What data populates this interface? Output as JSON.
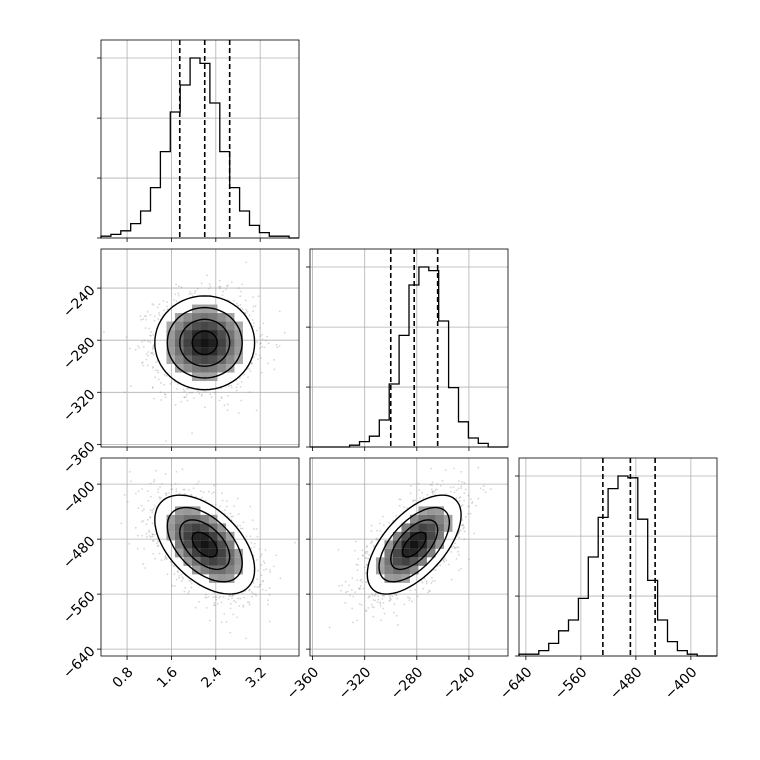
{
  "chart_data": {
    "type": "corner",
    "title": "",
    "grid": true,
    "parameters": [
      {
        "ticks": [
          0.8,
          1.6,
          2.4,
          3.2
        ],
        "tick_labels": [
          "0.8",
          "1.6",
          "2.4",
          "3.2"
        ],
        "range": [
          0.33,
          3.9
        ],
        "quantiles": [
          1.75,
          2.2,
          2.65
        ],
        "mean": 2.2,
        "sd": 0.45
      },
      {
        "ticks": [
          -360,
          -320,
          -280,
          -240
        ],
        "tick_labels": [
          "−360",
          "−320",
          "−280",
          "−240"
        ],
        "range": [
          -362,
          -210
        ],
        "quantiles": [
          -300,
          -282,
          -264
        ],
        "mean": -282,
        "sd": 18
      },
      {
        "ticks": [
          -640,
          -560,
          -480,
          -400
        ],
        "tick_labels": [
          "−640",
          "−560",
          "−480",
          "−400"
        ],
        "range": [
          -650,
          -362
        ],
        "quantiles": [
          -528,
          -488,
          -452
        ],
        "mean": -488,
        "sd": 36
      }
    ],
    "histograms": [
      {
        "bin_start": 0.33,
        "bin_width": 0.1785,
        "counts": [
          1,
          2,
          4,
          8,
          15,
          28,
          48,
          70,
          85,
          100,
          97,
          75,
          48,
          28,
          15,
          7,
          3,
          1,
          1,
          0
        ]
      },
      {
        "bin_start": -362,
        "bin_width": 7.6,
        "counts": [
          0,
          0,
          0,
          0,
          1,
          3,
          6,
          15,
          35,
          62,
          90,
          100,
          98,
          70,
          33,
          14,
          5,
          2,
          0,
          0
        ]
      },
      {
        "bin_start": -650,
        "bin_width": 14.4,
        "counts": [
          1,
          1,
          3,
          7,
          14,
          20,
          32,
          55,
          77,
          93,
          100,
          99,
          76,
          42,
          20,
          8,
          3,
          1,
          0,
          0
        ]
      }
    ],
    "correlations": [
      {
        "x": 0,
        "y": 1,
        "rho": 0.0
      },
      {
        "x": 0,
        "y": 2,
        "rho": -0.5
      },
      {
        "x": 1,
        "y": 2,
        "rho": 0.6
      }
    ],
    "contour_levels": [
      0.5,
      1.0,
      1.5,
      2.0
    ],
    "hist_y_ticks": [
      0,
      0.333,
      0.666,
      1.0
    ]
  }
}
